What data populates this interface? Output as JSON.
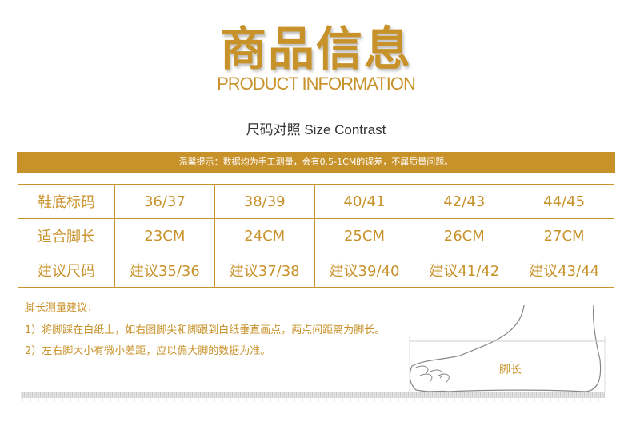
{
  "header": {
    "title": "商品信息",
    "subtitle": "PRODUCT INFORMATION",
    "section": "尺码对照 Size Contrast"
  },
  "notice": "温馨提示：数据均为手工测量，会有0.5-1CM的误差，不属质量问题。",
  "table": {
    "rows": [
      {
        "label": "鞋底标码",
        "cells": [
          "36/37",
          "38/39",
          "40/41",
          "42/43",
          "44/45"
        ]
      },
      {
        "label": "适合脚长",
        "cells": [
          "23CM",
          "24CM",
          "25CM",
          "26CM",
          "27CM"
        ]
      },
      {
        "label": "建议尺码",
        "cells": [
          "建议35/36",
          "建议37/38",
          "建议39/40",
          "建议41/42",
          "建议43/44"
        ]
      }
    ]
  },
  "tips": {
    "title": "脚长测量建议：",
    "items": [
      "1）将脚踩在白纸上，如右图脚尖和脚跟到白纸垂直画点，两点间距离为脚长。",
      "2）左右脚大小有微小差距，应以偏大脚的数据为准。"
    ]
  },
  "diagram": {
    "label": "脚长"
  },
  "colors": {
    "accent": "#c8922a"
  }
}
